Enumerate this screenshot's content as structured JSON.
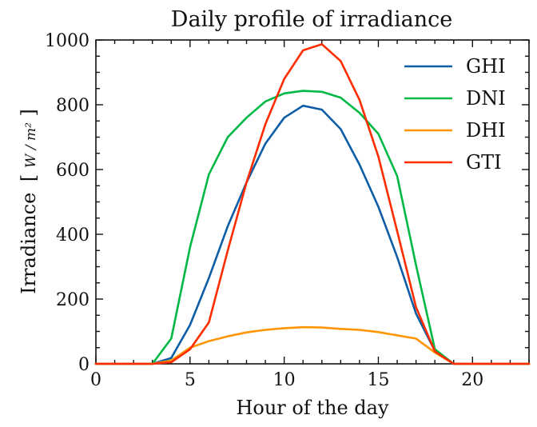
{
  "chart_data": {
    "type": "line",
    "title": "Daily profile of irradiance",
    "xlabel": "Hour of the day",
    "ylabel": "Irradiance",
    "ylabel_unit": "W / m²",
    "xlim": [
      0,
      23
    ],
    "ylim": [
      0,
      1000
    ],
    "x_ticks": [
      0,
      5,
      10,
      15,
      20
    ],
    "y_ticks": [
      0,
      200,
      400,
      600,
      800,
      1000
    ],
    "grid": false,
    "legend_position": "top-right",
    "x": [
      0,
      1,
      2,
      3,
      4,
      5,
      6,
      7,
      8,
      9,
      10,
      11,
      12,
      13,
      14,
      15,
      16,
      17,
      18,
      19,
      20,
      21,
      22,
      23
    ],
    "series": [
      {
        "name": "GHI",
        "color": "#0C5DA5",
        "values": [
          0,
          0,
          0,
          0,
          18,
          120,
          265,
          425,
          560,
          680,
          760,
          797,
          785,
          725,
          615,
          485,
          330,
          155,
          40,
          0,
          0,
          0,
          0,
          0
        ]
      },
      {
        "name": "DNI",
        "color": "#00B945",
        "values": [
          0,
          0,
          0,
          0,
          78,
          360,
          585,
          700,
          760,
          810,
          835,
          843,
          840,
          822,
          775,
          710,
          580,
          305,
          45,
          0,
          0,
          0,
          0,
          0
        ]
      },
      {
        "name": "DHI",
        "color": "#FF9500",
        "values": [
          0,
          0,
          0,
          0,
          10,
          50,
          70,
          85,
          97,
          105,
          110,
          113,
          112,
          108,
          105,
          98,
          88,
          78,
          35,
          0,
          0,
          0,
          0,
          0
        ]
      },
      {
        "name": "GTI",
        "color": "#FF2C00",
        "values": [
          0,
          0,
          0,
          0,
          5,
          45,
          128,
          350,
          560,
          740,
          880,
          968,
          987,
          935,
          815,
          640,
          410,
          175,
          38,
          0,
          0,
          0,
          0,
          0
        ]
      }
    ]
  }
}
